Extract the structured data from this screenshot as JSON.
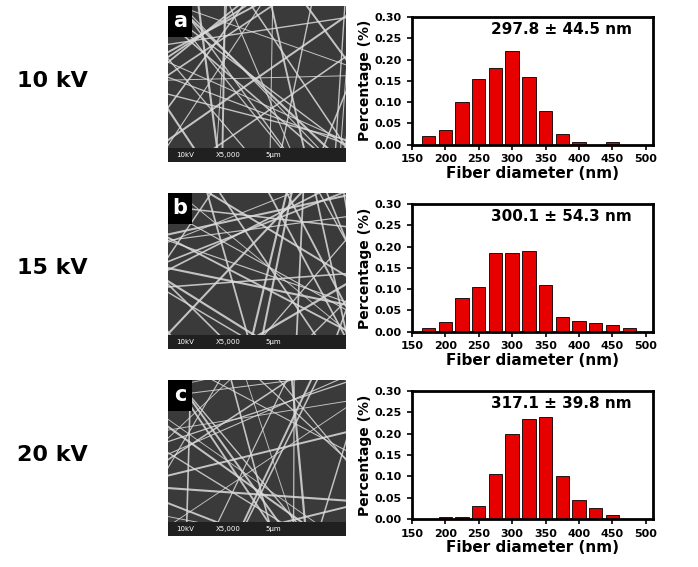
{
  "chart_data": [
    {
      "type": "histogram",
      "panel": "a",
      "voltage": "10 kV",
      "sem_labels": [
        "10kV",
        "X5,000",
        "5μm"
      ],
      "annotation": "297.8 ± 44.5 nm",
      "x_label": "Fiber diameter (nm)",
      "y_label": "Percentage (%)",
      "bins": [
        162.5,
        187.5,
        212.5,
        237.5,
        262.5,
        287.5,
        312.5,
        337.5,
        362.5,
        387.5,
        412.5,
        437.5,
        462.5,
        487.5
      ],
      "counts": [
        0.02,
        0.035,
        0.1,
        0.155,
        0.18,
        0.22,
        0.16,
        0.08,
        0.025,
        0.005,
        0.0,
        0.005,
        0.0
      ],
      "color": "#e60000",
      "xlim": [
        150,
        510
      ],
      "xticks": [
        150,
        200,
        250,
        300,
        350,
        400,
        450,
        500
      ],
      "ylim": [
        0,
        0.3
      ],
      "yticks": [
        {
          "value": 0,
          "label": "0.00"
        },
        {
          "value": 0.05,
          "label": "0.05"
        },
        {
          "value": 0.1,
          "label": "0.10"
        },
        {
          "value": 0.15,
          "label": "0.15"
        },
        {
          "value": 0.2,
          "label": "0.20"
        },
        {
          "value": 0.25,
          "label": "0.25"
        },
        {
          "value": 0.3,
          "label": "0.30"
        }
      ]
    },
    {
      "type": "histogram",
      "panel": "b",
      "voltage": "15 kV",
      "sem_labels": [
        "10kV",
        "X5,000",
        "5μm"
      ],
      "annotation": "300.1 ± 54.3 nm",
      "x_label": "Fiber diameter (nm)",
      "y_label": "Percentage (%)",
      "bins": [
        162.5,
        187.5,
        212.5,
        237.5,
        262.5,
        287.5,
        312.5,
        337.5,
        362.5,
        387.5,
        412.5,
        437.5,
        462.5,
        487.5
      ],
      "counts": [
        0.008,
        0.022,
        0.08,
        0.105,
        0.185,
        0.185,
        0.19,
        0.11,
        0.035,
        0.025,
        0.02,
        0.015,
        0.008
      ],
      "color": "#e60000",
      "xlim": [
        150,
        510
      ],
      "xticks": [
        150,
        200,
        250,
        300,
        350,
        400,
        450,
        500
      ],
      "ylim": [
        0,
        0.3
      ],
      "yticks": [
        {
          "value": 0,
          "label": "0.00"
        },
        {
          "value": 0.05,
          "label": "0.05"
        },
        {
          "value": 0.1,
          "label": "0.10"
        },
        {
          "value": 0.15,
          "label": "0.15"
        },
        {
          "value": 0.2,
          "label": "0.20"
        },
        {
          "value": 0.25,
          "label": "0.25"
        },
        {
          "value": 0.3,
          "label": "0.30"
        }
      ]
    },
    {
      "type": "histogram",
      "panel": "c",
      "voltage": "20 kV",
      "sem_labels": [
        "10kV",
        "X5,000",
        "5μm"
      ],
      "annotation": "317.1 ± 39.8 nm",
      "x_label": "Fiber diameter (nm)",
      "y_label": "Percentage (%)",
      "bins": [
        162.5,
        187.5,
        212.5,
        237.5,
        262.5,
        287.5,
        312.5,
        337.5,
        362.5,
        387.5,
        412.5,
        437.5,
        462.5,
        487.5
      ],
      "counts": [
        0.0,
        0.005,
        0.005,
        0.03,
        0.105,
        0.2,
        0.235,
        0.24,
        0.1,
        0.045,
        0.025,
        0.01,
        0.0
      ],
      "color": "#e60000",
      "xlim": [
        150,
        510
      ],
      "xticks": [
        150,
        200,
        250,
        300,
        350,
        400,
        450,
        500
      ],
      "ylim": [
        0,
        0.3
      ],
      "yticks": [
        {
          "value": 0,
          "label": "0.00"
        },
        {
          "value": 0.05,
          "label": "0.05"
        },
        {
          "value": 0.1,
          "label": "0.10"
        },
        {
          "value": 0.15,
          "label": "0.15"
        },
        {
          "value": 0.2,
          "label": "0.20"
        },
        {
          "value": 0.25,
          "label": "0.25"
        },
        {
          "value": 0.3,
          "label": "0.30"
        }
      ]
    }
  ]
}
